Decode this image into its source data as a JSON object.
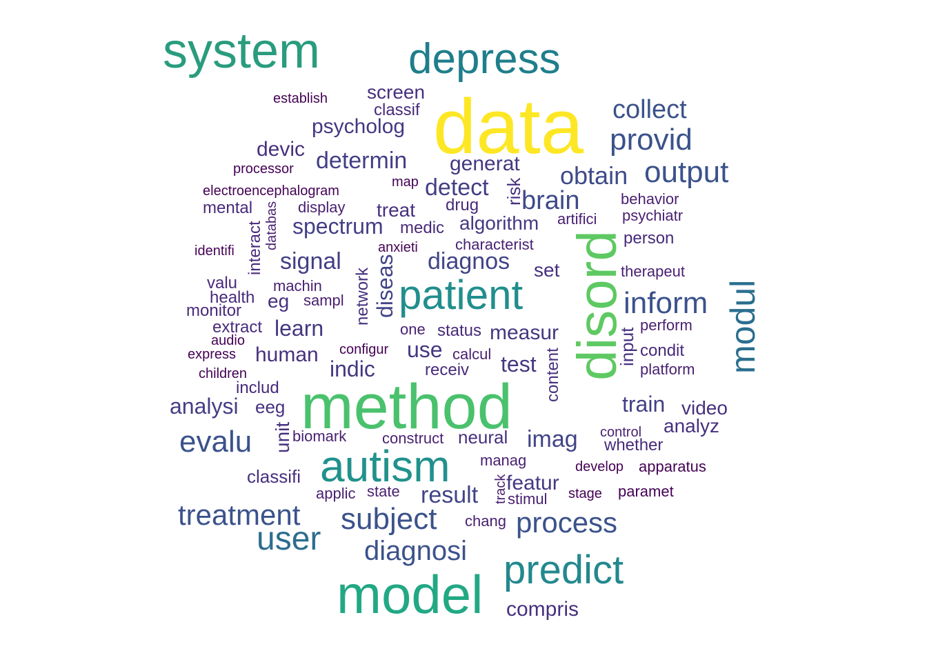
{
  "words": [
    {
      "text": "data",
      "color": "#fde725",
      "rot": 0
    },
    {
      "text": "method",
      "color": "#4ac16d",
      "rot": 0
    },
    {
      "text": "disord",
      "color": "#5ec962",
      "rot": -90
    },
    {
      "text": "model",
      "color": "#22a884",
      "rot": 0
    },
    {
      "text": "system",
      "color": "#2a9c7e",
      "rot": 0
    },
    {
      "text": "autism",
      "color": "#21918c",
      "rot": 0
    },
    {
      "text": "patient",
      "color": "#218e8d",
      "rot": 0
    },
    {
      "text": "depress",
      "color": "#1f7e8b",
      "rot": 0
    },
    {
      "text": "predict",
      "color": "#23888e",
      "rot": 0
    },
    {
      "text": "modul",
      "color": "#2a6e8e",
      "rot": -90
    },
    {
      "text": "user",
      "color": "#2c6d8e",
      "rot": 0
    },
    {
      "text": "provid",
      "color": "#3b528b",
      "rot": 0
    },
    {
      "text": "output",
      "color": "#3b528b",
      "rot": 0
    },
    {
      "text": "inform",
      "color": "#3b528b",
      "rot": 0
    },
    {
      "text": "subject",
      "color": "#3b528b",
      "rot": 0
    },
    {
      "text": "evalu",
      "color": "#3b528b",
      "rot": 0
    },
    {
      "text": "process",
      "color": "#3b528b",
      "rot": 0
    },
    {
      "text": "treatment",
      "color": "#3b528b",
      "rot": 0
    },
    {
      "text": "diagnosi",
      "color": "#3b528b",
      "rot": 0
    },
    {
      "text": "collect",
      "color": "#3b528b",
      "rot": 0
    },
    {
      "text": "obtain",
      "color": "#3e4a89",
      "rot": 0
    },
    {
      "text": "brain",
      "color": "#3e4a89",
      "rot": 0
    },
    {
      "text": "diagnos",
      "color": "#414487",
      "rot": 0
    },
    {
      "text": "diseas",
      "color": "#414487",
      "rot": -90
    },
    {
      "text": "imag",
      "color": "#414487",
      "rot": 0
    },
    {
      "text": "result",
      "color": "#414487",
      "rot": 0
    },
    {
      "text": "determin",
      "color": "#433e85",
      "rot": 0
    },
    {
      "text": "spectrum",
      "color": "#433e85",
      "rot": 0
    },
    {
      "text": "signal",
      "color": "#433e85",
      "rot": 0
    },
    {
      "text": "detect",
      "color": "#433e85",
      "rot": 0
    },
    {
      "text": "train",
      "color": "#433e85",
      "rot": 0
    },
    {
      "text": "analysi",
      "color": "#433e85",
      "rot": 0
    },
    {
      "text": "generat",
      "color": "#453781",
      "rot": 0
    },
    {
      "text": "psycholog",
      "color": "#453781",
      "rot": 0
    },
    {
      "text": "algorithm",
      "color": "#453781",
      "rot": 0
    },
    {
      "text": "measur",
      "color": "#453781",
      "rot": 0
    },
    {
      "text": "learn",
      "color": "#453781",
      "rot": 0
    },
    {
      "text": "test",
      "color": "#453781",
      "rot": 0
    },
    {
      "text": "use",
      "color": "#453781",
      "rot": 0
    },
    {
      "text": "indic",
      "color": "#453781",
      "rot": 0
    },
    {
      "text": "featur",
      "color": "#453781",
      "rot": 0
    },
    {
      "text": "compris",
      "color": "#46307e",
      "rot": 0
    },
    {
      "text": "devic",
      "color": "#46307e",
      "rot": 0
    },
    {
      "text": "screen",
      "color": "#46307e",
      "rot": 0
    },
    {
      "text": "human",
      "color": "#46307e",
      "rot": 0
    },
    {
      "text": "analyz",
      "color": "#46307e",
      "rot": 0
    },
    {
      "text": "video",
      "color": "#46307e",
      "rot": 0
    },
    {
      "text": "unit",
      "color": "#46307e",
      "rot": -90
    },
    {
      "text": "eg",
      "color": "#46307e",
      "rot": 0
    },
    {
      "text": "eeg",
      "color": "#46307e",
      "rot": 0
    },
    {
      "text": "treat",
      "color": "#46307e",
      "rot": 0
    },
    {
      "text": "set",
      "color": "#46307e",
      "rot": 0
    },
    {
      "text": "neural",
      "color": "#46307e",
      "rot": 0
    },
    {
      "text": "classifi",
      "color": "#46307e",
      "rot": 0
    },
    {
      "text": "risk",
      "color": "#46307e",
      "rot": -90
    },
    {
      "text": "input",
      "color": "#46307e",
      "rot": -90
    },
    {
      "text": "network",
      "color": "#46307e",
      "rot": -90
    },
    {
      "text": "content",
      "color": "#46307e",
      "rot": -90
    },
    {
      "text": "classif",
      "color": "#472a7a",
      "rot": 0
    },
    {
      "text": "medic",
      "color": "#472a7a",
      "rot": 0
    },
    {
      "text": "mental",
      "color": "#472a7a",
      "rot": 0
    },
    {
      "text": "drug",
      "color": "#472a7a",
      "rot": 0
    },
    {
      "text": "condit",
      "color": "#472a7a",
      "rot": 0
    },
    {
      "text": "monitor",
      "color": "#472a7a",
      "rot": 0
    },
    {
      "text": "health",
      "color": "#472a7a",
      "rot": 0
    },
    {
      "text": "valu",
      "color": "#472a7a",
      "rot": 0
    },
    {
      "text": "extract",
      "color": "#472a7a",
      "rot": 0
    },
    {
      "text": "whether",
      "color": "#472a7a",
      "rot": 0
    },
    {
      "text": "interact",
      "color": "#472a7a",
      "rot": -90
    },
    {
      "text": "person",
      "color": "#472a7a",
      "rot": 0
    },
    {
      "text": "receiv",
      "color": "#472a7a",
      "rot": 0
    },
    {
      "text": "includ",
      "color": "#472a7a",
      "rot": 0
    },
    {
      "text": "status",
      "color": "#472a7a",
      "rot": 0
    },
    {
      "text": "characterist",
      "color": "#481f70",
      "rot": 0
    },
    {
      "text": "behavior",
      "color": "#481f70",
      "rot": 0
    },
    {
      "text": "psychiatr",
      "color": "#481f70",
      "rot": 0
    },
    {
      "text": "artifici",
      "color": "#481f70",
      "rot": 0
    },
    {
      "text": "display",
      "color": "#481f70",
      "rot": 0
    },
    {
      "text": "perform",
      "color": "#481f70",
      "rot": 0
    },
    {
      "text": "platform",
      "color": "#481f70",
      "rot": 0
    },
    {
      "text": "calcul",
      "color": "#481f70",
      "rot": 0
    },
    {
      "text": "one",
      "color": "#481f70",
      "rot": 0
    },
    {
      "text": "machin",
      "color": "#481f70",
      "rot": 0
    },
    {
      "text": "sampl",
      "color": "#481f70",
      "rot": 0
    },
    {
      "text": "biomark",
      "color": "#481f70",
      "rot": 0
    },
    {
      "text": "construct",
      "color": "#481f70",
      "rot": 0
    },
    {
      "text": "manag",
      "color": "#481f70",
      "rot": 0
    },
    {
      "text": "applic",
      "color": "#481f70",
      "rot": 0
    },
    {
      "text": "state",
      "color": "#481f70",
      "rot": 0
    },
    {
      "text": "stimul",
      "color": "#481f70",
      "rot": 0
    },
    {
      "text": "chang",
      "color": "#481f70",
      "rot": 0
    },
    {
      "text": "therapeut",
      "color": "#481f70",
      "rot": 0
    },
    {
      "text": "control",
      "color": "#481f70",
      "rot": 0
    },
    {
      "text": "databas",
      "color": "#481f70",
      "rot": -90
    },
    {
      "text": "track",
      "color": "#481f70",
      "rot": -90
    },
    {
      "text": "establish",
      "color": "#440154",
      "rot": 0
    },
    {
      "text": "processor",
      "color": "#440154",
      "rot": 0
    },
    {
      "text": "electroencephalogram",
      "color": "#440154",
      "rot": 0
    },
    {
      "text": "map",
      "color": "#440154",
      "rot": 0
    },
    {
      "text": "anxieti",
      "color": "#440154",
      "rot": 0
    },
    {
      "text": "identifi",
      "color": "#440154",
      "rot": 0
    },
    {
      "text": "audio",
      "color": "#440154",
      "rot": 0
    },
    {
      "text": "express",
      "color": "#440154",
      "rot": 0
    },
    {
      "text": "children",
      "color": "#440154",
      "rot": 0
    },
    {
      "text": "configur",
      "color": "#440154",
      "rot": 0
    },
    {
      "text": "develop",
      "color": "#440154",
      "rot": 0
    },
    {
      "text": "apparatus",
      "color": "#440154",
      "rot": 0
    },
    {
      "text": "stage",
      "color": "#440154",
      "rot": 0
    },
    {
      "text": "paramet",
      "color": "#440154",
      "rot": 0
    }
  ]
}
